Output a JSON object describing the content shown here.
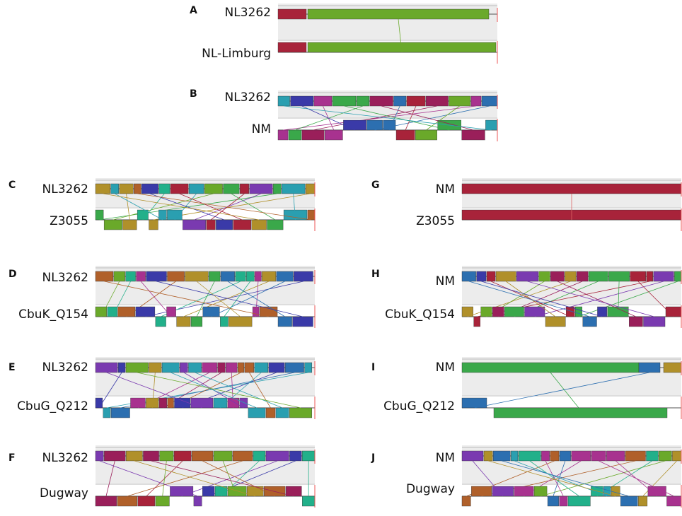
{
  "panels": [
    {
      "letter": "A",
      "top": "NL3262",
      "bottom": "NL-Limburg"
    },
    {
      "letter": "B",
      "top": "NL3262",
      "bottom": "NM"
    },
    {
      "letter": "C",
      "top": "NL3262",
      "bottom": "Z3055"
    },
    {
      "letter": "D",
      "top": "NL3262",
      "bottom": "CbuK_Q154"
    },
    {
      "letter": "E",
      "top": "NL3262",
      "bottom": "CbuG_Q212"
    },
    {
      "letter": "F",
      "top": "NL3262",
      "bottom": "Dugway"
    },
    {
      "letter": "G",
      "top": "NM",
      "bottom": "Z3055"
    },
    {
      "letter": "H",
      "top": "NM",
      "bottom": "CbuK_Q154"
    },
    {
      "letter": "I",
      "top": "NM",
      "bottom": "CbuG_Q212"
    },
    {
      "letter": "J",
      "top": "NM",
      "bottom": "Dugway"
    }
  ]
}
